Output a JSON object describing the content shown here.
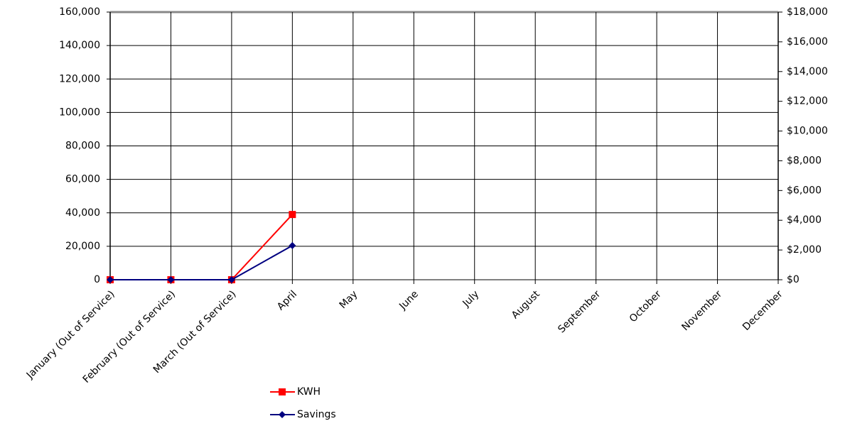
{
  "chart_data": {
    "type": "line",
    "categories": [
      "January (Out of Service)",
      "February (Out of Service)",
      "March (Out of Service)",
      "April",
      "May",
      "June",
      "July",
      "August",
      "September",
      "October",
      "November",
      "December"
    ],
    "series": [
      {
        "name": "KWH",
        "color": "#ff0000",
        "marker": "square",
        "values": [
          0,
          0,
          0,
          39000,
          null,
          null,
          null,
          null,
          null,
          null,
          null,
          null
        ]
      },
      {
        "name": "Savings",
        "color": "#000080",
        "marker": "diamond",
        "axis": "y2",
        "values": [
          0,
          0,
          0,
          2300,
          null,
          null,
          null,
          null,
          null,
          null,
          null,
          null
        ]
      }
    ],
    "ylim": [
      0,
      160000
    ],
    "yticks": [
      0,
      {
        "value": 20000,
        "label": "20,000"
      },
      {
        "value": 40000,
        "label": "40,000"
      },
      {
        "value": 60000,
        "label": "60,000"
      },
      {
        "value": 80000,
        "label": "80,000"
      },
      {
        "value": 100000,
        "label": "100,000"
      },
      {
        "value": 120000,
        "label": "120,000"
      },
      {
        "value": 140000,
        "label": "140,000"
      },
      {
        "value": 160000,
        "label": "160,000"
      }
    ],
    "y2lim": [
      0,
      18000
    ],
    "y2ticks": [
      {
        "value": 0,
        "label": "$0"
      },
      {
        "value": 2000,
        "label": "$2,000"
      },
      {
        "value": 4000,
        "label": "$4,000"
      },
      {
        "value": 6000,
        "label": "$6,000"
      },
      {
        "value": 8000,
        "label": "$8,000"
      },
      {
        "value": 10000,
        "label": "$10,000"
      },
      {
        "value": 12000,
        "label": "$12,000"
      },
      {
        "value": 14000,
        "label": "$14,000"
      },
      {
        "value": 16000,
        "label": "$16,000"
      },
      {
        "value": 18000,
        "label": "$18,000"
      }
    ],
    "grid": true,
    "legend": "bottom"
  }
}
